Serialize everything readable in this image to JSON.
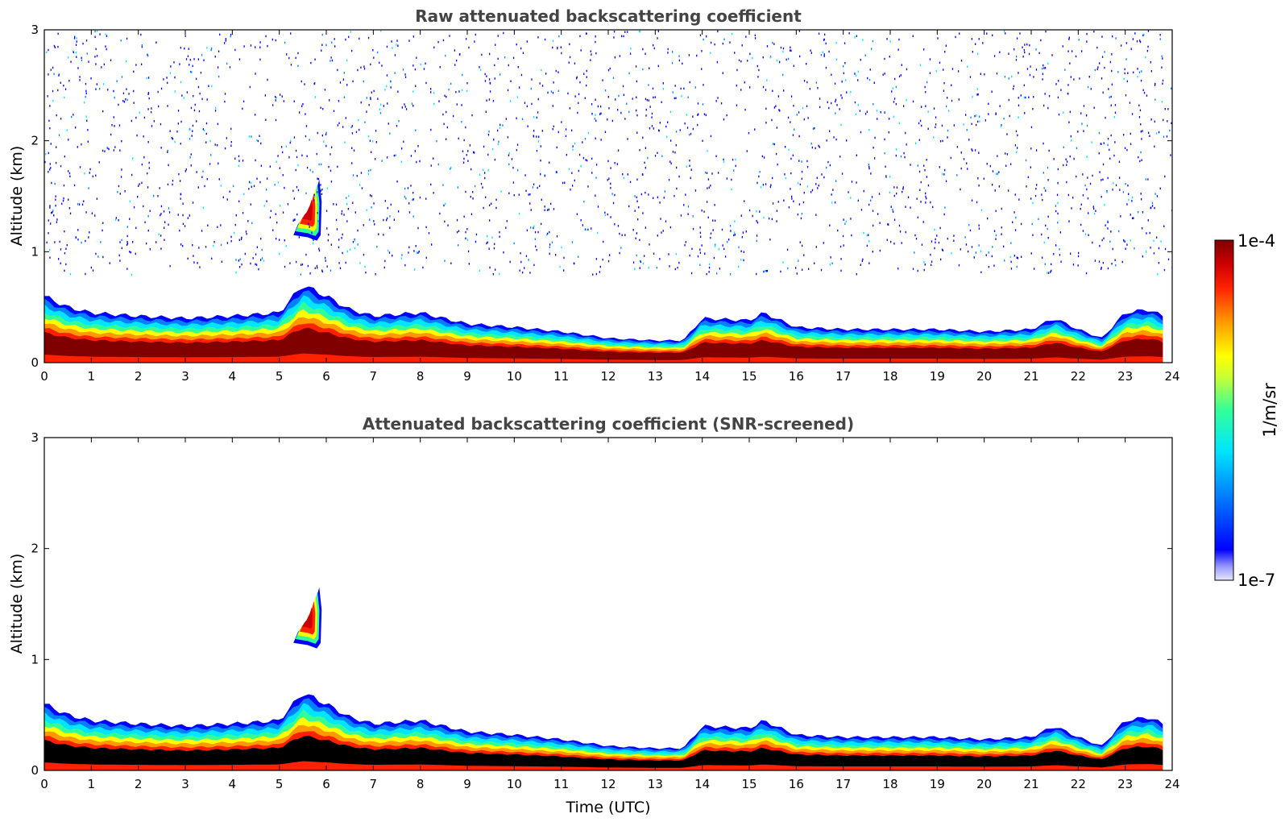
{
  "chart_data": [
    {
      "type": "heatmap",
      "title": "Raw attenuated backscattering coefficient",
      "xlabel": "",
      "ylabel": "Altitude (km)",
      "xlim": [
        0,
        24
      ],
      "ylim": [
        0,
        3
      ],
      "xticks": [
        "0",
        "1",
        "2",
        "3",
        "4",
        "5",
        "6",
        "7",
        "8",
        "9",
        "10",
        "11",
        "12",
        "13",
        "14",
        "15",
        "16",
        "17",
        "18",
        "19",
        "20",
        "21",
        "22",
        "23",
        "24"
      ],
      "yticks": [
        "0",
        "1",
        "2",
        "3"
      ],
      "boundary_layer_top_km": {
        "x": [
          0,
          0.5,
          1,
          2,
          3,
          4,
          5,
          5.5,
          6,
          6.5,
          7,
          8,
          9,
          10,
          11,
          12,
          13,
          13.6,
          14,
          15,
          15.3,
          16,
          17,
          18,
          19,
          20,
          21,
          21.5,
          22,
          22.5,
          23,
          23.5,
          23.8
        ],
        "y": [
          0.6,
          0.5,
          0.45,
          0.42,
          0.4,
          0.42,
          0.45,
          0.7,
          0.6,
          0.48,
          0.42,
          0.45,
          0.35,
          0.32,
          0.28,
          0.22,
          0.2,
          0.2,
          0.4,
          0.38,
          0.45,
          0.32,
          0.3,
          0.3,
          0.3,
          0.28,
          0.3,
          0.4,
          0.3,
          0.22,
          0.45,
          0.48,
          0.42
        ]
      },
      "features": [
        {
          "type": "cloud",
          "x": [
            5.3,
            5.9
          ],
          "y": [
            1.1,
            1.65
          ]
        },
        {
          "type": "noise",
          "x": [
            0,
            24
          ],
          "y": [
            0.8,
            3.0
          ]
        }
      ]
    },
    {
      "type": "heatmap",
      "title": "Attenuated backscattering coefficient (SNR-screened)",
      "xlabel": "Time (UTC)",
      "ylabel": "Altitude (km)",
      "xlim": [
        0,
        24
      ],
      "ylim": [
        0,
        3
      ],
      "xticks": [
        "0",
        "1",
        "2",
        "3",
        "4",
        "5",
        "6",
        "7",
        "8",
        "9",
        "10",
        "11",
        "12",
        "13",
        "14",
        "15",
        "16",
        "17",
        "18",
        "19",
        "20",
        "21",
        "22",
        "23",
        "24"
      ],
      "yticks": [
        "0",
        "1",
        "2",
        "3"
      ],
      "boundary_layer_top_km": {
        "x": [
          0,
          0.5,
          1,
          2,
          3,
          4,
          5,
          5.5,
          6,
          6.5,
          7,
          8,
          9,
          10,
          11,
          12,
          13,
          13.6,
          14,
          15,
          15.3,
          16,
          17,
          18,
          19,
          20,
          21,
          21.5,
          22,
          22.5,
          23,
          23.5,
          23.8
        ],
        "y": [
          0.6,
          0.5,
          0.45,
          0.42,
          0.4,
          0.42,
          0.45,
          0.7,
          0.6,
          0.48,
          0.42,
          0.45,
          0.35,
          0.32,
          0.28,
          0.22,
          0.2,
          0.2,
          0.4,
          0.38,
          0.45,
          0.32,
          0.3,
          0.3,
          0.3,
          0.28,
          0.3,
          0.4,
          0.3,
          0.22,
          0.45,
          0.48,
          0.42
        ]
      },
      "features": [
        {
          "type": "cloud",
          "x": [
            5.3,
            5.9
          ],
          "y": [
            1.1,
            1.65
          ]
        }
      ]
    }
  ],
  "colorbar": {
    "label": "1/m/sr",
    "min_label": "1e-7",
    "max_label": "1e-4",
    "colors": [
      "#e6e6fa",
      "#9999ff",
      "#0000ff",
      "#0080ff",
      "#00e5ff",
      "#33ff99",
      "#ccff33",
      "#ffff00",
      "#ff9900",
      "#ff2200",
      "#cc0000",
      "#800000"
    ]
  }
}
